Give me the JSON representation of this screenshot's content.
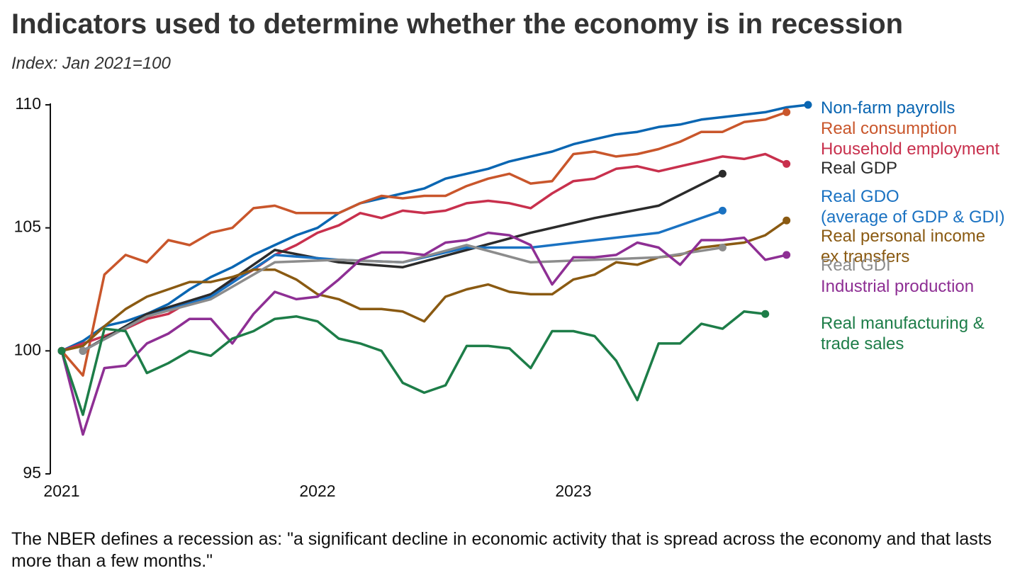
{
  "chart_data": {
    "type": "line",
    "title": "Indicators used to determine whether the economy is in recession",
    "subtitle": "Index: Jan 2021=100",
    "note": "The NBER defines a recession as: \"a significant decline in economic activity that is spread across the economy and that lasts more than a few months.\"",
    "xlim": [
      2021,
      2023.917
    ],
    "xticks": [
      2021,
      2022,
      2023
    ],
    "ylim": [
      95,
      110
    ],
    "yticks": [
      95,
      100,
      105,
      110
    ],
    "grid": false,
    "series": [
      {
        "name": "Non-farm payrolls",
        "color": "#0a66b2",
        "x": [
          2021,
          2021.083,
          2021.167,
          2021.25,
          2021.333,
          2021.417,
          2021.5,
          2021.583,
          2021.667,
          2021.75,
          2021.833,
          2021.917,
          2022,
          2022.083,
          2022.167,
          2022.25,
          2022.333,
          2022.417,
          2022.5,
          2022.583,
          2022.667,
          2022.75,
          2022.833,
          2022.917,
          2023,
          2023.083,
          2023.167,
          2023.25,
          2023.333,
          2023.417,
          2023.5,
          2023.583,
          2023.667,
          2023.75,
          2023.833,
          2023.917
        ],
        "values": [
          100,
          100.4,
          101.0,
          101.2,
          101.5,
          101.9,
          102.5,
          103.0,
          103.4,
          103.9,
          104.3,
          104.7,
          105.0,
          105.6,
          106.0,
          106.2,
          106.4,
          106.6,
          107.0,
          107.2,
          107.4,
          107.7,
          107.9,
          108.1,
          108.4,
          108.6,
          108.8,
          108.9,
          109.1,
          109.2,
          109.4,
          109.5,
          109.6,
          109.7,
          109.9,
          110.0
        ]
      },
      {
        "name": "Real consumption",
        "color": "#c9562b",
        "x": [
          2021,
          2021.083,
          2021.167,
          2021.25,
          2021.333,
          2021.417,
          2021.5,
          2021.583,
          2021.667,
          2021.75,
          2021.833,
          2021.917,
          2022,
          2022.083,
          2022.167,
          2022.25,
          2022.333,
          2022.417,
          2022.5,
          2022.583,
          2022.667,
          2022.75,
          2022.833,
          2022.917,
          2023,
          2023.083,
          2023.167,
          2023.25,
          2023.333,
          2023.417,
          2023.5,
          2023.583,
          2023.667,
          2023.75,
          2023.833
        ],
        "values": [
          100,
          99.0,
          103.1,
          103.9,
          103.6,
          104.5,
          104.3,
          104.8,
          105.0,
          105.8,
          105.9,
          105.6,
          105.6,
          105.6,
          106.0,
          106.3,
          106.2,
          106.3,
          106.3,
          106.7,
          107.0,
          107.2,
          106.8,
          106.9,
          108.0,
          108.1,
          107.9,
          108.0,
          108.2,
          108.5,
          108.9,
          108.9,
          109.3,
          109.4,
          109.7
        ]
      },
      {
        "name": "Household employment",
        "color": "#c8304d",
        "x": [
          2021,
          2021.083,
          2021.167,
          2021.25,
          2021.333,
          2021.417,
          2021.5,
          2021.583,
          2021.667,
          2021.75,
          2021.833,
          2021.917,
          2022,
          2022.083,
          2022.167,
          2022.25,
          2022.333,
          2022.417,
          2022.5,
          2022.583,
          2022.667,
          2022.75,
          2022.833,
          2022.917,
          2023,
          2023.083,
          2023.167,
          2023.25,
          2023.333,
          2023.417,
          2023.5,
          2023.583,
          2023.667,
          2023.75,
          2023.833
        ],
        "values": [
          100,
          100.3,
          100.6,
          100.9,
          101.3,
          101.5,
          102.0,
          102.3,
          102.8,
          103.3,
          103.9,
          104.3,
          104.8,
          105.1,
          105.6,
          105.4,
          105.7,
          105.6,
          105.7,
          106.0,
          106.1,
          106.0,
          105.8,
          106.4,
          106.9,
          107.0,
          107.4,
          107.5,
          107.3,
          107.5,
          107.7,
          107.9,
          107.8,
          108.0,
          107.6
        ]
      },
      {
        "name": "Real GDP",
        "color": "#2b2b2b",
        "x": [
          2021.083,
          2021.333,
          2021.583,
          2021.833,
          2022.083,
          2022.333,
          2022.583,
          2022.833,
          2023.083,
          2023.333,
          2023.583
        ],
        "values": [
          100,
          101.5,
          102.3,
          104.1,
          103.6,
          103.4,
          104.1,
          104.8,
          105.4,
          105.9,
          107.2
        ]
      },
      {
        "name": "Real GDO\n(average of GDP & GDI)",
        "color": "#1a72c2",
        "x": [
          2021.083,
          2021.333,
          2021.583,
          2021.833,
          2022.083,
          2022.333,
          2022.583,
          2022.833,
          2023.083,
          2023.333,
          2023.583
        ],
        "values": [
          100,
          101.4,
          102.2,
          103.9,
          103.7,
          103.6,
          104.2,
          104.2,
          104.5,
          104.8,
          105.7
        ]
      },
      {
        "name": "Real personal income\nex transfers",
        "color": "#8a5a12",
        "x": [
          2021,
          2021.083,
          2021.167,
          2021.25,
          2021.333,
          2021.417,
          2021.5,
          2021.583,
          2021.667,
          2021.75,
          2021.833,
          2021.917,
          2022,
          2022.083,
          2022.167,
          2022.25,
          2022.333,
          2022.417,
          2022.5,
          2022.583,
          2022.667,
          2022.75,
          2022.833,
          2022.917,
          2023,
          2023.083,
          2023.167,
          2023.25,
          2023.333,
          2023.417,
          2023.5,
          2023.583,
          2023.667,
          2023.75,
          2023.833
        ],
        "values": [
          100,
          100.2,
          101.0,
          101.7,
          102.2,
          102.5,
          102.8,
          102.8,
          103.0,
          103.3,
          103.3,
          102.9,
          102.3,
          102.1,
          101.7,
          101.7,
          101.6,
          101.2,
          102.2,
          102.5,
          102.7,
          102.4,
          102.3,
          102.3,
          102.9,
          103.1,
          103.6,
          103.5,
          103.8,
          103.9,
          104.2,
          104.3,
          104.4,
          104.7,
          105.3
        ]
      },
      {
        "name": "Real GDI",
        "color": "#8c8c8c",
        "x": [
          2021.083,
          2021.333,
          2021.583,
          2021.833,
          2022.083,
          2022.333,
          2022.583,
          2022.833,
          2023.083,
          2023.333,
          2023.583
        ],
        "values": [
          100,
          101.4,
          102.1,
          103.6,
          103.7,
          103.6,
          104.3,
          103.6,
          103.7,
          103.8,
          104.2
        ]
      },
      {
        "name": "Industrial production",
        "color": "#8e2f94",
        "x": [
          2021,
          2021.083,
          2021.167,
          2021.25,
          2021.333,
          2021.417,
          2021.5,
          2021.583,
          2021.667,
          2021.75,
          2021.833,
          2021.917,
          2022,
          2022.083,
          2022.167,
          2022.25,
          2022.333,
          2022.417,
          2022.5,
          2022.583,
          2022.667,
          2022.75,
          2022.833,
          2022.917,
          2023,
          2023.083,
          2023.167,
          2023.25,
          2023.333,
          2023.417,
          2023.5,
          2023.583,
          2023.667,
          2023.75,
          2023.833
        ],
        "values": [
          100,
          96.6,
          99.3,
          99.4,
          100.3,
          100.7,
          101.3,
          101.3,
          100.3,
          101.5,
          102.4,
          102.1,
          102.2,
          102.9,
          103.7,
          104.0,
          104.0,
          103.9,
          104.4,
          104.5,
          104.8,
          104.7,
          104.3,
          102.7,
          103.8,
          103.8,
          103.9,
          104.4,
          104.2,
          103.5,
          104.5,
          104.5,
          104.6,
          103.7,
          103.9
        ]
      },
      {
        "name": "Real manufacturing &\ntrade sales",
        "color": "#1d7d48",
        "x": [
          2021,
          2021.083,
          2021.167,
          2021.25,
          2021.333,
          2021.417,
          2021.5,
          2021.583,
          2021.667,
          2021.75,
          2021.833,
          2021.917,
          2022,
          2022.083,
          2022.167,
          2022.25,
          2022.333,
          2022.417,
          2022.5,
          2022.583,
          2022.667,
          2022.75,
          2022.833,
          2022.917,
          2023,
          2023.083,
          2023.167,
          2023.25,
          2023.333,
          2023.417,
          2023.5,
          2023.583,
          2023.667,
          2023.75
        ],
        "values": [
          100,
          97.4,
          100.9,
          100.8,
          99.1,
          99.5,
          100.0,
          99.8,
          100.5,
          100.8,
          101.3,
          101.4,
          101.2,
          100.5,
          100.3,
          100.0,
          98.7,
          98.3,
          98.6,
          100.2,
          100.2,
          100.1,
          99.3,
          100.8,
          100.8,
          100.6,
          99.6,
          98.0,
          100.3,
          100.3,
          101.1,
          100.9,
          101.6,
          101.5
        ]
      }
    ]
  }
}
